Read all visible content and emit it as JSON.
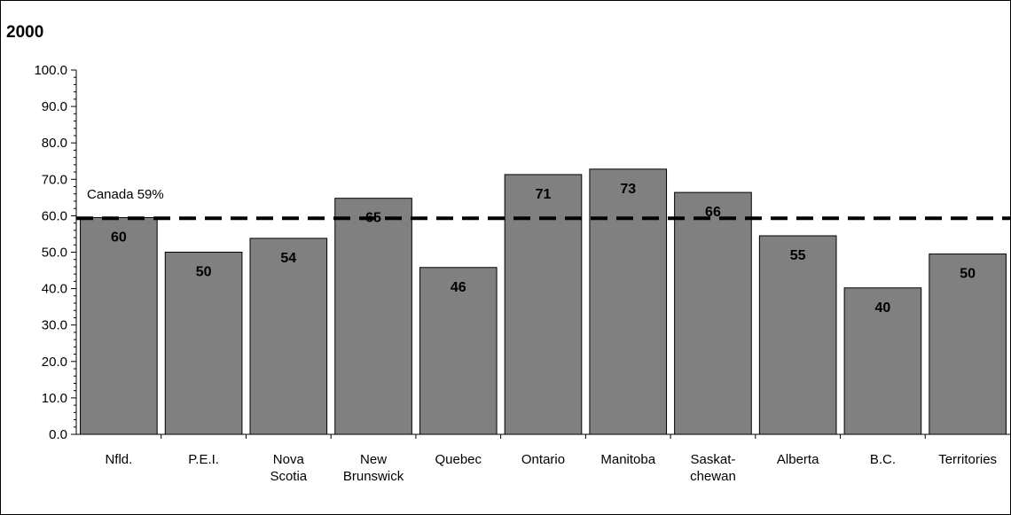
{
  "chart_data": {
    "type": "bar",
    "title": "2000",
    "xlabel": "",
    "ylabel": "",
    "ylim": [
      0,
      100
    ],
    "yticks": [
      "0.0",
      "10.0",
      "20.0",
      "30.0",
      "40.0",
      "50.0",
      "60.0",
      "70.0",
      "80.0",
      "90.0",
      "100.0"
    ],
    "categories": [
      [
        "Nfld."
      ],
      [
        "P.E.I."
      ],
      [
        "Nova",
        "Scotia"
      ],
      [
        "New",
        "Brunswick"
      ],
      [
        "Quebec"
      ],
      [
        "Ontario"
      ],
      [
        "Manitoba"
      ],
      [
        "Saskat-",
        "chewan"
      ],
      [
        "Alberta"
      ],
      [
        "B.C."
      ],
      [
        "Territories"
      ]
    ],
    "values": [
      59.5,
      50,
      53.8,
      64.8,
      45.8,
      71.3,
      72.8,
      66.4,
      54.5,
      40.2,
      49.5
    ],
    "data_labels": [
      "60",
      "50",
      "54",
      "65",
      "46",
      "71",
      "73",
      "66",
      "55",
      "40",
      "50"
    ],
    "reference_line": {
      "label": "Canada 59%",
      "value": 59.3
    },
    "grid": false,
    "legend": "none",
    "bar_color": "#808080",
    "reference_line_color": "#000000"
  }
}
